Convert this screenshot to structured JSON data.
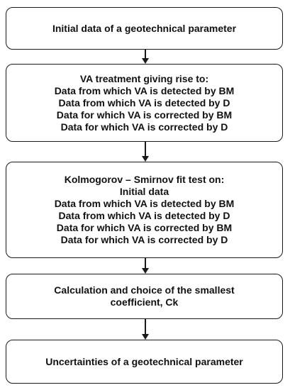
{
  "flowchart": {
    "step1": {
      "lines": [
        "Initial data of a geotechnical parameter"
      ]
    },
    "step2": {
      "lines": [
        "VA treatment giving rise to:",
        "Data from which VA is detected by BM",
        "Data from which VA is detected by D",
        "Data for which VA is corrected by BM",
        "Data for which VA is corrected by D"
      ]
    },
    "step3": {
      "lines": [
        "Kolmogorov – Smirnov fit test on:",
        "Initial data",
        "Data from which VA is detected by BM",
        "Data from which VA is detected by D",
        "Data for which VA is corrected by BM",
        "Data for which VA is corrected by D"
      ]
    },
    "step4": {
      "lines": [
        "Calculation and choice of the smallest",
        "coefficient, Ck"
      ]
    },
    "step5": {
      "lines": [
        "Uncertainties of a geotechnical parameter"
      ]
    }
  }
}
